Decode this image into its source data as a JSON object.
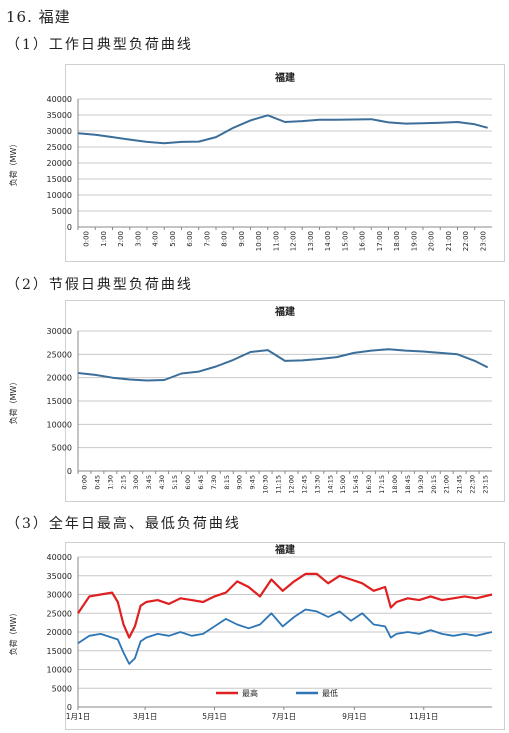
{
  "page": {
    "heading": "16. 福建",
    "sub1": "（1）工作日典型负荷曲线",
    "sub2": "（2）节假日典型负荷曲线",
    "sub3": "（3）全年日最高、最低负荷曲线"
  },
  "colors": {
    "weekday": "#3c6e9a",
    "high": "#e02020",
    "low": "#2e75b6",
    "grid": "#c8c8c8"
  },
  "chart_data": [
    {
      "type": "line",
      "title": "福建",
      "ylabel": "负荷（MW）",
      "ylim": [
        0,
        40000
      ],
      "yticks": [
        "0",
        "5000",
        "10000",
        "15000",
        "20000",
        "25000",
        "30000",
        "35000",
        "40000"
      ],
      "xticks": [
        "0:00",
        "1:00",
        "2:00",
        "3:00",
        "4:00",
        "5:00",
        "6:00",
        "7:00",
        "8:00",
        "9:00",
        "10:00",
        "11:00",
        "12:00",
        "13:00",
        "14:00",
        "15:00",
        "16:00",
        "17:00",
        "18:00",
        "19:00",
        "20:00",
        "21:00",
        "22:00",
        "23:00"
      ],
      "x": [
        "0:00",
        "1:00",
        "2:00",
        "3:00",
        "4:00",
        "5:00",
        "6:00",
        "7:00",
        "8:00",
        "9:00",
        "10:00",
        "11:00",
        "12:00",
        "13:00",
        "14:00",
        "15:00",
        "16:00",
        "17:00",
        "18:00",
        "19:00",
        "20:00",
        "21:00",
        "22:00",
        "23:00",
        "23:45"
      ],
      "series": [
        {
          "values": [
            29300,
            28800,
            28100,
            27300,
            26600,
            26200,
            26600,
            26700,
            28100,
            31000,
            33300,
            34900,
            32800,
            33100,
            33500,
            33500,
            33600,
            33700,
            32700,
            32300,
            32400,
            32600,
            32800,
            32100,
            31000
          ]
        }
      ]
    },
    {
      "type": "line",
      "title": "福建",
      "ylabel": "负荷（MW）",
      "ylim": [
        0,
        30000
      ],
      "yticks": [
        "0",
        "5000",
        "10000",
        "15000",
        "20000",
        "25000",
        "30000"
      ],
      "xticks": [
        "0:00",
        "0:45",
        "1:30",
        "2:15",
        "3:00",
        "3:45",
        "4:30",
        "5:15",
        "6:00",
        "6:45",
        "7:30",
        "8:15",
        "9:00",
        "9:45",
        "10:30",
        "11:15",
        "12:00",
        "12:45",
        "13:30",
        "14:15",
        "15:00",
        "15:45",
        "16:30",
        "17:15",
        "18:00",
        "18:45",
        "19:30",
        "20:15",
        "21:00",
        "21:45",
        "22:30",
        "23:15"
      ],
      "x": [
        "0:00",
        "1:00",
        "2:00",
        "3:00",
        "4:00",
        "5:00",
        "6:00",
        "7:00",
        "8:00",
        "9:00",
        "10:00",
        "11:00",
        "12:00",
        "13:00",
        "14:00",
        "15:00",
        "16:00",
        "17:00",
        "18:00",
        "19:00",
        "20:00",
        "21:00",
        "22:00",
        "23:00",
        "23:45"
      ],
      "series": [
        {
          "values": [
            21000,
            20600,
            20000,
            19600,
            19400,
            19500,
            20900,
            21300,
            22400,
            23800,
            25500,
            25900,
            23600,
            23700,
            24000,
            24400,
            25300,
            25800,
            26100,
            25800,
            25600,
            25300,
            25000,
            23600,
            22200
          ]
        }
      ]
    },
    {
      "type": "line",
      "title": "福建",
      "ylabel": "负荷（MW）",
      "ylim": [
        0,
        40000
      ],
      "yticks": [
        "0",
        "5000",
        "10000",
        "15000",
        "20000",
        "25000",
        "30000",
        "35000",
        "40000"
      ],
      "xticks": [
        "1月1日",
        "3月1日",
        "5月1日",
        "7月1日",
        "9月1日",
        "11月1日"
      ],
      "xtick_days": [
        0,
        59,
        120,
        181,
        243,
        304
      ],
      "x_days": [
        0,
        10,
        20,
        30,
        35,
        40,
        45,
        50,
        55,
        60,
        70,
        80,
        90,
        100,
        110,
        120,
        130,
        140,
        150,
        160,
        170,
        180,
        190,
        200,
        210,
        220,
        230,
        240,
        250,
        260,
        270,
        275,
        280,
        290,
        300,
        310,
        320,
        330,
        340,
        350,
        364
      ],
      "legend": "bottom",
      "series": [
        {
          "name": "最高",
          "values": [
            25000,
            29500,
            30000,
            30500,
            28000,
            22000,
            18500,
            21500,
            27000,
            28000,
            28500,
            27500,
            29000,
            28500,
            28000,
            29500,
            30500,
            33500,
            32000,
            29500,
            34000,
            31000,
            33500,
            35500,
            35500,
            33000,
            35000,
            34000,
            33000,
            31000,
            32000,
            26500,
            28000,
            29000,
            28500,
            29500,
            28500,
            29000,
            29500,
            29000,
            30000
          ]
        },
        {
          "name": "最低",
          "values": [
            17000,
            19000,
            19500,
            18500,
            18000,
            14500,
            11500,
            13000,
            17500,
            18500,
            19500,
            19000,
            20000,
            19000,
            19500,
            21500,
            23500,
            22000,
            21000,
            22000,
            25000,
            21500,
            24000,
            26000,
            25500,
            24000,
            25500,
            23000,
            25000,
            22000,
            21500,
            18500,
            19500,
            20000,
            19500,
            20500,
            19500,
            19000,
            19500,
            19000,
            20000
          ]
        }
      ]
    }
  ]
}
